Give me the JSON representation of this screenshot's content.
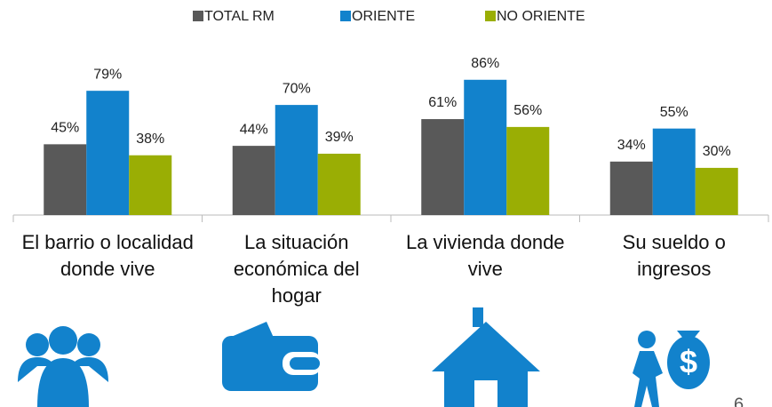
{
  "chart_data": {
    "type": "bar",
    "categories": [
      "El barrio o localidad donde vive",
      "La situación económica del hogar",
      "La vivienda donde vive",
      "Su sueldo o ingresos"
    ],
    "series": [
      {
        "name": "TOTAL RM",
        "color": "#595959",
        "values": [
          45,
          44,
          61,
          34
        ],
        "value_labels": [
          "45%",
          "44%",
          "61%",
          "34%"
        ]
      },
      {
        "name": "ORIENTE",
        "color": "#1282cc",
        "values": [
          79,
          70,
          86,
          55
        ],
        "value_labels": [
          "79%",
          "70%",
          "86%",
          "55%"
        ]
      },
      {
        "name": "NO ORIENTE",
        "color": "#9aae04",
        "values": [
          38,
          39,
          56,
          30
        ],
        "value_labels": [
          "38%",
          "39%",
          "56%",
          "30%"
        ]
      }
    ],
    "ylim": [
      0,
      100
    ],
    "legend": "top",
    "page_number": "6"
  }
}
